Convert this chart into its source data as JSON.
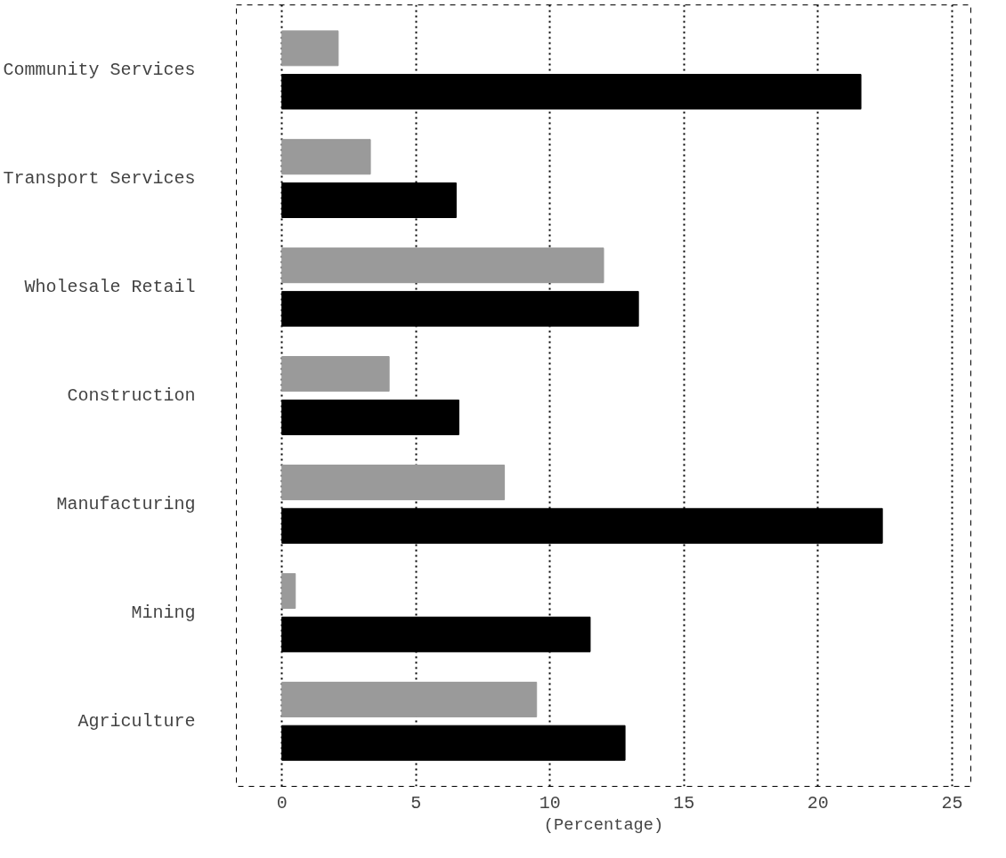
{
  "chart_data": {
    "type": "bar",
    "orientation": "horizontal",
    "xlabel": "(Percentage)",
    "categories": [
      "Community Services",
      "Transport Services",
      "Wholesale Retail",
      "Construction",
      "Manufacturing",
      "Mining",
      "Agriculture"
    ],
    "series": [
      {
        "color": "#9a9a9a",
        "values": [
          2.1,
          3.3,
          12.0,
          4.0,
          8.3,
          0.5,
          9.5
        ]
      },
      {
        "color": "#000000",
        "values": [
          21.6,
          6.5,
          13.3,
          6.6,
          22.4,
          11.5,
          12.8
        ]
      }
    ],
    "xlim": [
      -1.7,
      25.7
    ],
    "xticks": [
      0,
      5,
      10,
      15,
      20,
      25
    ],
    "grid": "x",
    "line_style": "dotted"
  }
}
